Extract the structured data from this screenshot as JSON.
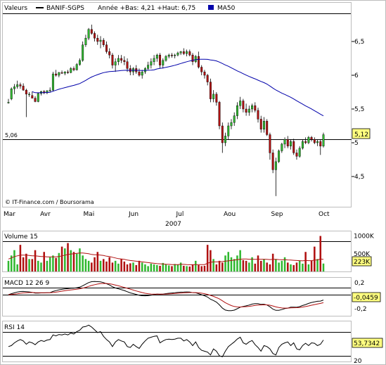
{
  "legend": {
    "valeurs_label": "Valeurs",
    "series_name": "BANIF-SGPS",
    "range_text": "Année +Bas: 4,21 +Haut: 6,75",
    "ma_label": "MA50",
    "price_color": "#000000",
    "ma_color": "#0000aa"
  },
  "credit": "© IT-Finance.com / Boursorama",
  "colors": {
    "up_candle": "#2fb82f",
    "down_candle": "#b01010",
    "volume_line": "#b01010",
    "macd_line": "#000000",
    "signal_line": "#b01010",
    "value_box": "#ffff80"
  },
  "chart_data": [
    {
      "type": "candlestick",
      "name": "price",
      "title": "",
      "x_months": [
        "Mar",
        "Avr",
        "Mai",
        "Jun",
        "Jul",
        "Aou",
        "Sep",
        "Oct"
      ],
      "x_year_label": "2007",
      "y_ticks": [
        "4,5",
        "5",
        "5,5",
        "6",
        "6,5"
      ],
      "ylim": [
        4.0,
        6.95
      ],
      "reference_line": {
        "value": 5.06,
        "label": "5,06"
      },
      "last_value_label": "5,12",
      "ohlc_note": "open/high/low/close in EUR, one per trading session, 6 Mar 2007 – 5 Oct 2007",
      "ohlc": [
        [
          5.6,
          5.65,
          5.58,
          5.6
        ],
        [
          5.65,
          5.82,
          5.63,
          5.8
        ],
        [
          5.8,
          5.87,
          5.72,
          5.83
        ],
        [
          5.83,
          5.92,
          5.8,
          5.86
        ],
        [
          5.86,
          5.89,
          5.8,
          5.84
        ],
        [
          5.84,
          5.88,
          5.77,
          5.78
        ],
        [
          5.78,
          5.8,
          5.38,
          5.72
        ],
        [
          5.72,
          5.75,
          5.68,
          5.72
        ],
        [
          5.7,
          5.76,
          5.66,
          5.66
        ],
        [
          5.66,
          5.69,
          5.6,
          5.61
        ],
        [
          5.61,
          5.74,
          5.6,
          5.73
        ],
        [
          5.73,
          5.77,
          5.7,
          5.76
        ],
        [
          5.76,
          5.78,
          5.72,
          5.74
        ],
        [
          5.74,
          5.78,
          5.72,
          5.77
        ],
        [
          5.77,
          5.82,
          5.75,
          5.78
        ],
        [
          5.78,
          6.05,
          5.76,
          6.02
        ],
        [
          6.02,
          6.08,
          5.98,
          6.0
        ],
        [
          6.0,
          6.05,
          5.97,
          6.04
        ],
        [
          6.04,
          6.07,
          6.02,
          6.03
        ],
        [
          6.03,
          6.06,
          6.0,
          6.05
        ],
        [
          6.05,
          6.08,
          6.02,
          6.04
        ],
        [
          6.04,
          6.12,
          6.03,
          6.1
        ],
        [
          6.1,
          6.13,
          6.06,
          6.08
        ],
        [
          6.08,
          6.18,
          6.07,
          6.16
        ],
        [
          6.16,
          6.25,
          6.14,
          6.22
        ],
        [
          6.22,
          6.5,
          6.2,
          6.45
        ],
        [
          6.45,
          6.6,
          6.42,
          6.55
        ],
        [
          6.55,
          6.7,
          6.52,
          6.68
        ],
        [
          6.68,
          6.75,
          6.6,
          6.62
        ],
        [
          6.62,
          6.65,
          6.5,
          6.55
        ],
        [
          6.55,
          6.6,
          6.45,
          6.5
        ],
        [
          6.5,
          6.58,
          6.4,
          6.52
        ],
        [
          6.52,
          6.55,
          6.42,
          6.45
        ],
        [
          6.45,
          6.5,
          6.32,
          6.35
        ],
        [
          6.35,
          6.4,
          6.25,
          6.3
        ],
        [
          6.3,
          6.33,
          6.1,
          6.15
        ],
        [
          6.15,
          6.25,
          6.05,
          6.2
        ],
        [
          6.2,
          6.3,
          6.15,
          6.25
        ],
        [
          6.25,
          6.3,
          6.18,
          6.22
        ],
        [
          6.22,
          6.28,
          6.15,
          6.2
        ],
        [
          6.2,
          6.25,
          6.05,
          6.1
        ],
        [
          6.1,
          6.15,
          6.0,
          6.05
        ],
        [
          6.05,
          6.12,
          6.0,
          6.1
        ],
        [
          6.1,
          6.15,
          6.02,
          6.05
        ],
        [
          6.05,
          6.1,
          5.98,
          6.0
        ],
        [
          6.0,
          6.08,
          5.95,
          6.05
        ],
        [
          6.05,
          6.12,
          6.02,
          6.1
        ],
        [
          6.1,
          6.2,
          6.08,
          6.15
        ],
        [
          6.15,
          6.25,
          6.1,
          6.2
        ],
        [
          6.2,
          6.3,
          6.15,
          6.25
        ],
        [
          6.25,
          6.32,
          6.2,
          6.3
        ],
        [
          6.3,
          6.33,
          6.1,
          6.15
        ],
        [
          6.15,
          6.25,
          6.1,
          6.22
        ],
        [
          6.22,
          6.3,
          6.2,
          6.28
        ],
        [
          6.28,
          6.32,
          6.25,
          6.3
        ],
        [
          6.3,
          6.33,
          6.26,
          6.29
        ],
        [
          6.29,
          6.32,
          6.25,
          6.3
        ],
        [
          6.3,
          6.35,
          6.28,
          6.33
        ],
        [
          6.33,
          6.36,
          6.3,
          6.35
        ],
        [
          6.35,
          6.4,
          6.3,
          6.32
        ],
        [
          6.32,
          6.38,
          6.28,
          6.35
        ],
        [
          6.35,
          6.38,
          6.28,
          6.3
        ],
        [
          6.3,
          6.33,
          6.15,
          6.2
        ],
        [
          6.2,
          6.3,
          6.18,
          6.28
        ],
        [
          6.28,
          6.35,
          6.1,
          6.12
        ],
        [
          6.12,
          6.15,
          6.0,
          6.05
        ],
        [
          6.05,
          6.08,
          5.95,
          6.0
        ],
        [
          6.0,
          6.02,
          5.85,
          5.9
        ],
        [
          5.9,
          5.95,
          5.6,
          5.65
        ],
        [
          5.65,
          5.78,
          5.6,
          5.72
        ],
        [
          5.72,
          5.75,
          5.55,
          5.6
        ],
        [
          5.6,
          5.62,
          5.2,
          5.25
        ],
        [
          5.25,
          5.3,
          4.85,
          5.0
        ],
        [
          5.0,
          5.15,
          4.95,
          5.1
        ],
        [
          5.1,
          5.3,
          5.05,
          5.25
        ],
        [
          5.25,
          5.35,
          5.2,
          5.3
        ],
        [
          5.3,
          5.45,
          5.25,
          5.4
        ],
        [
          5.4,
          5.6,
          5.35,
          5.55
        ],
        [
          5.55,
          5.68,
          5.5,
          5.62
        ],
        [
          5.62,
          5.65,
          5.45,
          5.5
        ],
        [
          5.5,
          5.58,
          5.4,
          5.45
        ],
        [
          5.45,
          5.55,
          5.4,
          5.5
        ],
        [
          5.5,
          5.58,
          5.45,
          5.55
        ],
        [
          5.55,
          5.6,
          5.45,
          5.48
        ],
        [
          5.48,
          5.52,
          5.3,
          5.35
        ],
        [
          5.35,
          5.4,
          5.15,
          5.2
        ],
        [
          5.2,
          5.38,
          5.15,
          5.32
        ],
        [
          5.32,
          5.35,
          5.1,
          5.12
        ],
        [
          5.12,
          5.15,
          4.75,
          4.85
        ],
        [
          4.85,
          4.9,
          4.55,
          4.6
        ],
        [
          4.6,
          4.78,
          4.21,
          4.72
        ],
        [
          4.72,
          4.9,
          4.7,
          4.88
        ],
        [
          4.88,
          5.0,
          4.85,
          4.98
        ],
        [
          4.98,
          5.08,
          4.92,
          5.05
        ],
        [
          5.05,
          5.1,
          4.92,
          4.95
        ],
        [
          4.95,
          5.05,
          4.9,
          5.02
        ],
        [
          5.02,
          5.06,
          4.82,
          4.85
        ],
        [
          4.85,
          4.9,
          4.75,
          4.8
        ],
        [
          4.8,
          4.95,
          4.78,
          4.92
        ],
        [
          4.92,
          5.05,
          4.9,
          5.02
        ],
        [
          5.02,
          5.08,
          4.98,
          5.0
        ],
        [
          5.0,
          5.1,
          4.98,
          5.08
        ],
        [
          5.08,
          5.1,
          5.02,
          5.05
        ],
        [
          5.05,
          5.08,
          4.98,
          5.0
        ],
        [
          5.0,
          5.05,
          4.95,
          5.02
        ],
        [
          5.02,
          5.05,
          4.82,
          4.95
        ],
        [
          4.95,
          5.15,
          4.93,
          5.12
        ]
      ]
    },
    {
      "type": "bar",
      "name": "Volume 15",
      "label": "Volume 15",
      "y_ticks": [
        "500K",
        "1000K"
      ],
      "ylim": [
        0,
        1050000
      ],
      "last_value_label": "223K",
      "values": [
        300000,
        450000,
        600000,
        200000,
        750000,
        400000,
        500000,
        350000,
        350000,
        600000,
        300000,
        250000,
        550000,
        300000,
        400000,
        450000,
        380000,
        520000,
        700000,
        650000,
        800000,
        600000,
        550000,
        500000,
        650000,
        450000,
        350000,
        300000,
        250000,
        400000,
        550000,
        300000,
        350000,
        280000,
        400000,
        250000,
        300000,
        220000,
        350000,
        280000,
        200000,
        230000,
        250000,
        180000,
        300000,
        250000,
        200000,
        150000,
        220000,
        200000,
        180000,
        160000,
        240000,
        200000,
        170000,
        150000,
        210000,
        190000,
        250000,
        160000,
        150000,
        140000,
        200000,
        300000,
        180000,
        150000,
        160000,
        750000,
        600000,
        350000,
        200000,
        300000,
        250000,
        450000,
        550000,
        400000,
        350000,
        450000,
        600000,
        320000,
        300000,
        250000,
        400000,
        220000,
        450000,
        300000,
        350000,
        250000,
        200000,
        500000,
        350000,
        250000,
        300000,
        400000,
        250000,
        200000,
        180000,
        250000,
        300000,
        220000,
        550000,
        200000,
        300000,
        700000,
        350000,
        1000000,
        223000
      ],
      "ma_values": [
        350000,
        380000,
        420000,
        440000,
        460000,
        460000,
        460000,
        450000,
        440000,
        440000,
        430000,
        420000,
        420000,
        410000,
        410000,
        410000,
        410000,
        420000,
        440000,
        460000,
        480000,
        490000,
        500000,
        510000,
        520000,
        520000,
        510000,
        500000,
        480000,
        470000,
        470000,
        460000,
        450000,
        430000,
        420000,
        400000,
        380000,
        360000,
        350000,
        340000,
        320000,
        310000,
        300000,
        290000,
        280000,
        270000,
        260000,
        250000,
        240000,
        230000,
        220000,
        215000,
        210000,
        205000,
        200000,
        195000,
        195000,
        195000,
        200000,
        200000,
        195000,
        190000,
        190000,
        195000,
        195000,
        195000,
        195000,
        230000,
        260000,
        270000,
        270000,
        275000,
        280000,
        290000,
        300000,
        310000,
        320000,
        330000,
        345000,
        350000,
        350000,
        345000,
        345000,
        340000,
        345000,
        345000,
        345000,
        340000,
        335000,
        340000,
        340000,
        335000,
        330000,
        330000,
        325000,
        320000,
        315000,
        310000,
        305000,
        300000,
        310000,
        305000,
        305000,
        320000,
        325000,
        350000,
        340000
      ]
    },
    {
      "type": "line",
      "name": "MACD 12 26 9",
      "label": "MACD 12 26 9",
      "y_ticks": [
        "0,2",
        "-0,2"
      ],
      "ylim": [
        -0.3,
        0.3
      ],
      "last_value_label": "-0,0459"
    },
    {
      "type": "line",
      "name": "RSI 14",
      "label": "RSI 14",
      "y_ticks": [
        "20"
      ],
      "ylim": [
        15,
        90
      ],
      "last_value_label": "53,7342",
      "values": [
        40,
        42,
        48,
        52,
        55,
        52,
        45,
        50,
        48,
        44,
        50,
        53,
        51,
        54,
        55,
        65,
        63,
        66,
        65,
        67,
        65,
        69,
        67,
        72,
        75,
        82,
        83,
        86,
        82,
        76,
        70,
        72,
        62,
        55,
        50,
        40,
        50,
        55,
        52,
        50,
        40,
        38,
        45,
        40,
        36,
        45,
        52,
        58,
        60,
        62,
        63,
        48,
        52,
        55,
        56,
        55,
        56,
        58,
        58,
        52,
        55,
        50,
        42,
        50,
        38,
        32,
        30,
        28,
        22,
        35,
        30,
        20,
        18,
        30,
        40,
        45,
        50,
        56,
        60,
        48,
        45,
        50,
        53,
        44,
        38,
        30,
        42,
        40,
        35,
        25,
        22,
        38,
        45,
        48,
        50,
        42,
        48,
        35,
        33,
        42,
        47,
        42,
        48,
        47,
        42,
        45,
        54
      ]
    }
  ]
}
